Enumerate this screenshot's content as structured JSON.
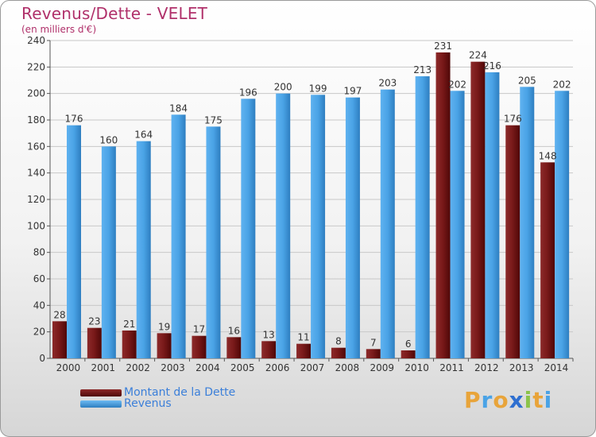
{
  "chart_data": {
    "type": "bar",
    "title": "Revenus/Dette - VELET",
    "subtitle": "(en milliers d'€)",
    "categories": [
      "2000",
      "2001",
      "2002",
      "2003",
      "2004",
      "2005",
      "2006",
      "2007",
      "2008",
      "2009",
      "2010",
      "2011",
      "2012",
      "2013",
      "2014"
    ],
    "series": [
      {
        "name": "Montant de la Dette",
        "color": "#7a1a1a",
        "values": [
          28,
          23,
          21,
          19,
          17,
          16,
          13,
          11,
          8,
          7,
          6,
          231,
          224,
          176,
          148
        ]
      },
      {
        "name": "Revenus",
        "color": "#4aa3e6",
        "values": [
          176,
          160,
          164,
          184,
          175,
          196,
          200,
          199,
          197,
          203,
          213,
          202,
          216,
          205,
          202
        ]
      }
    ],
    "ylim": [
      0,
      240
    ],
    "yticks": [
      0,
      20,
      40,
      60,
      80,
      100,
      120,
      140,
      160,
      180,
      200,
      220,
      240
    ],
    "grid": true,
    "legend_position": "bottom-left"
  },
  "logo": {
    "letters": [
      "P",
      "r",
      "o",
      "x",
      "i",
      "t",
      "i"
    ],
    "colors": [
      "#e8a43a",
      "#4aa3e6",
      "#e8a43a",
      "#2e6fd0",
      "#8bc34a",
      "#e8a43a",
      "#4aa3e6"
    ]
  }
}
